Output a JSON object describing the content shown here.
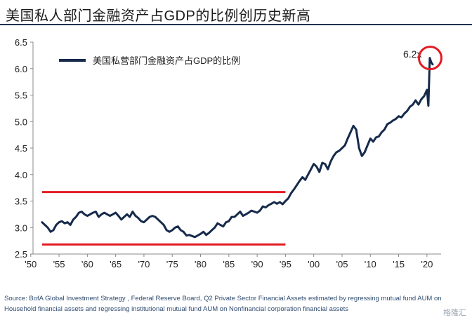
{
  "title": "美国私人部门金融资产占GDP的比例创历史新高",
  "legend_label": "美国私营部门金融资产占GDP的比例",
  "callout": "6.2x",
  "source_text": "Source:  BofA Global Investment Strategy , Federal Reserve Board, Q2 Private Sector Financial Assets estimated by regressing mutual fund AUM on Household financial assets and regressing institutional mutual fund AUM on Nonfinancial corporation financial assets",
  "watermark": "格隆汇",
  "colors": {
    "series": "#162a4b",
    "band": "#e31b23",
    "circle": "#e31b23",
    "title_rule": "#1f3350"
  },
  "chart_data": {
    "type": "line",
    "title": "美国私人部门金融资产占GDP的比例创历史新高",
    "xlabel": "",
    "ylabel": "",
    "xlim": [
      1950.4,
      2022.5
    ],
    "ylim": [
      2.5,
      6.5
    ],
    "x_ticks": [
      1950,
      1955,
      1960,
      1965,
      1970,
      1975,
      1980,
      1985,
      1990,
      1995,
      2000,
      2005,
      2010,
      2015,
      2020
    ],
    "x_tick_labels": [
      "'50",
      "'55",
      "'60",
      "'65",
      "'70",
      "'75",
      "'80",
      "'85",
      "'90",
      "'95",
      "'00",
      "'05",
      "'10",
      "'15",
      "'20"
    ],
    "y_ticks": [
      2.5,
      3.0,
      3.5,
      4.0,
      4.5,
      5.0,
      5.5,
      6.0,
      6.5
    ],
    "y_tick_labels": [
      "2.5",
      "3.0",
      "3.5",
      "4.0",
      "4.5",
      "5.0",
      "5.5",
      "6.0",
      "6.5"
    ],
    "grid": false,
    "legend_position": "top-left",
    "series": [
      {
        "name": "美国私营部门金融资产占GDP的比例",
        "x": [
          1952.0,
          1952.5,
          1953.0,
          1953.5,
          1954.0,
          1954.5,
          1955.0,
          1955.5,
          1956.0,
          1956.5,
          1957.0,
          1957.5,
          1958.0,
          1958.5,
          1959.0,
          1959.5,
          1960.0,
          1960.5,
          1961.0,
          1961.5,
          1962.0,
          1962.5,
          1963.0,
          1963.5,
          1964.0,
          1964.5,
          1965.0,
          1965.5,
          1966.0,
          1966.5,
          1967.0,
          1967.5,
          1968.0,
          1968.5,
          1969.0,
          1969.5,
          1970.0,
          1970.5,
          1971.0,
          1971.5,
          1972.0,
          1972.5,
          1973.0,
          1973.5,
          1974.0,
          1974.5,
          1975.0,
          1975.5,
          1976.0,
          1976.5,
          1977.0,
          1977.5,
          1978.0,
          1978.5,
          1979.0,
          1979.5,
          1980.0,
          1980.5,
          1981.0,
          1981.5,
          1982.0,
          1982.5,
          1983.0,
          1983.5,
          1984.0,
          1984.5,
          1985.0,
          1985.5,
          1986.0,
          1986.5,
          1987.0,
          1987.5,
          1988.0,
          1988.5,
          1989.0,
          1989.5,
          1990.0,
          1990.5,
          1991.0,
          1991.5,
          1992.0,
          1992.5,
          1993.0,
          1993.5,
          1994.0,
          1994.5,
          1995.0,
          1995.5,
          1996.0,
          1996.5,
          1997.0,
          1997.5,
          1998.0,
          1998.5,
          1999.0,
          1999.5,
          2000.0,
          2000.5,
          2001.0,
          2001.5,
          2002.0,
          2002.5,
          2003.0,
          2003.5,
          2004.0,
          2004.5,
          2005.0,
          2005.5,
          2006.0,
          2006.5,
          2007.0,
          2007.5,
          2008.0,
          2008.5,
          2009.0,
          2009.5,
          2010.0,
          2010.5,
          2011.0,
          2011.5,
          2012.0,
          2012.5,
          2013.0,
          2013.5,
          2014.0,
          2014.5,
          2015.0,
          2015.5,
          2016.0,
          2016.5,
          2017.0,
          2017.5,
          2018.0,
          2018.5,
          2019.0,
          2019.5,
          2020.0,
          2020.25,
          2020.5,
          2020.75,
          2021.0
        ],
        "values": [
          3.1,
          3.05,
          3.0,
          2.92,
          2.95,
          3.05,
          3.1,
          3.12,
          3.08,
          3.1,
          3.05,
          3.15,
          3.2,
          3.28,
          3.3,
          3.25,
          3.22,
          3.25,
          3.28,
          3.3,
          3.2,
          3.25,
          3.28,
          3.25,
          3.22,
          3.25,
          3.28,
          3.22,
          3.15,
          3.2,
          3.25,
          3.2,
          3.3,
          3.22,
          3.18,
          3.12,
          3.1,
          3.15,
          3.2,
          3.22,
          3.2,
          3.15,
          3.1,
          3.05,
          2.95,
          2.92,
          2.95,
          3.0,
          3.02,
          2.95,
          2.92,
          2.85,
          2.86,
          2.84,
          2.82,
          2.85,
          2.88,
          2.92,
          2.86,
          2.9,
          2.95,
          3.0,
          3.08,
          3.05,
          3.02,
          3.1,
          3.12,
          3.2,
          3.2,
          3.25,
          3.3,
          3.22,
          3.25,
          3.28,
          3.32,
          3.3,
          3.28,
          3.32,
          3.4,
          3.38,
          3.42,
          3.45,
          3.48,
          3.45,
          3.48,
          3.44,
          3.5,
          3.55,
          3.65,
          3.72,
          3.8,
          3.88,
          3.95,
          3.9,
          4.0,
          4.1,
          4.2,
          4.15,
          4.05,
          4.22,
          4.2,
          4.1,
          4.25,
          4.35,
          4.42,
          4.45,
          4.5,
          4.55,
          4.68,
          4.8,
          4.92,
          4.85,
          4.5,
          4.35,
          4.42,
          4.55,
          4.68,
          4.62,
          4.7,
          4.72,
          4.8,
          4.85,
          4.95,
          4.98,
          5.02,
          5.05,
          5.1,
          5.08,
          5.15,
          5.2,
          5.28,
          5.32,
          5.4,
          5.32,
          5.42,
          5.48,
          5.6,
          5.3,
          6.2,
          6.12,
          6.08
        ]
      }
    ],
    "reference_bands": [
      {
        "y": 3.67,
        "x_start": 1952.0,
        "x_end": 1995.0
      },
      {
        "y": 2.68,
        "x_start": 1952.0,
        "x_end": 1995.0
      }
    ],
    "annotations": [
      {
        "text": "6.2x",
        "x": 2020.2,
        "y": 6.2,
        "marker": "red circle"
      }
    ]
  }
}
